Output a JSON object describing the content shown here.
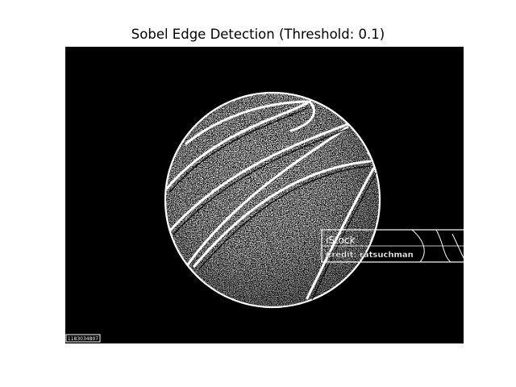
{
  "figure": {
    "title": "Sobel Edge Detection (Threshold: 0.1)"
  },
  "image": {
    "subject": "basketball-edge-map",
    "palette": {
      "background": "#000000",
      "edge": "#ffffff"
    },
    "watermark": {
      "brand": "iStock",
      "credit": "Credit: ",
      "credit_name": "ratsuchman",
      "id_code": "1183034807"
    }
  }
}
